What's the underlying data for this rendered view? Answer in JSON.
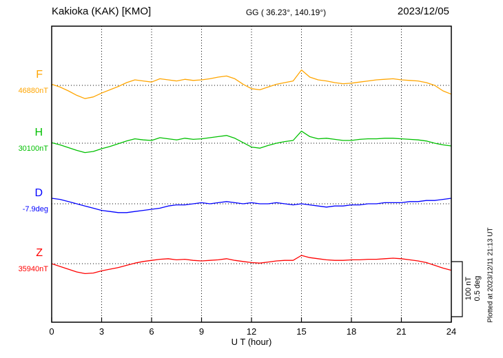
{
  "header": {
    "title": "Kakioka (KAK)  [KMO]",
    "coordinates": "GG ( 36.23°, 140.19°)",
    "date": "2023/12/05"
  },
  "axis": {
    "xlabel": "U T (hour)",
    "x_ticks": [
      0,
      3,
      6,
      9,
      12,
      15,
      18,
      21,
      24
    ]
  },
  "scale_bar": {
    "labels": [
      "100 nT",
      "0.5 deg"
    ]
  },
  "footer": {
    "plotted_at": "Plotted at 2023/12/11 21:13 UT"
  },
  "chart_data": {
    "type": "line",
    "title": "Kakioka (KAK) [KMO] magnetogram 2023/12/05",
    "xlabel": "U T (hour)",
    "xlim": [
      0,
      24
    ],
    "x_ticks": [
      0,
      3,
      6,
      9,
      12,
      15,
      18,
      21,
      24
    ],
    "grid": "dotted vertical lines every 3 h; dotted horizontal baseline per trace",
    "legend_position": "left margin (trace letter + baseline value)",
    "scale": {
      "bar_nT": 100,
      "bar_deg": 0.5
    },
    "x_hours": [
      0,
      0.5,
      1,
      1.5,
      2,
      2.5,
      3,
      3.5,
      4,
      4.5,
      5,
      5.5,
      6,
      6.5,
      7,
      7.5,
      8,
      8.5,
      9,
      9.5,
      10,
      10.5,
      11,
      11.5,
      12,
      12.5,
      13,
      13.5,
      14,
      14.5,
      15,
      15.5,
      16,
      16.5,
      17,
      17.5,
      18,
      18.5,
      19,
      19.5,
      20,
      20.5,
      21,
      21.5,
      22,
      22.5,
      23,
      23.5,
      24
    ],
    "series": [
      {
        "name": "F",
        "unit": "nT",
        "baseline_label": "46880nT",
        "baseline_value": 46880,
        "color": "#ffa500",
        "offsets": [
          2,
          -3,
          -10,
          -18,
          -24,
          -21,
          -14,
          -8,
          -2,
          5,
          10,
          8,
          6,
          12,
          10,
          8,
          11,
          9,
          10,
          12,
          15,
          17,
          12,
          2,
          -6,
          -8,
          -3,
          2,
          5,
          8,
          28,
          15,
          10,
          8,
          5,
          3,
          4,
          6,
          8,
          10,
          11,
          12,
          10,
          9,
          8,
          5,
          0,
          -10,
          -16
        ]
      },
      {
        "name": "H",
        "unit": "nT",
        "baseline_label": "30100nT",
        "baseline_value": 30100,
        "color": "#00c000",
        "offsets": [
          1,
          -3,
          -8,
          -13,
          -17,
          -15,
          -10,
          -6,
          -1,
          4,
          8,
          6,
          5,
          10,
          8,
          6,
          9,
          7,
          8,
          10,
          12,
          14,
          9,
          1,
          -7,
          -9,
          -4,
          0,
          3,
          5,
          22,
          12,
          8,
          9,
          7,
          5,
          5,
          7,
          8,
          8,
          9,
          9,
          8,
          7,
          6,
          4,
          0,
          -3,
          -5
        ]
      },
      {
        "name": "D",
        "unit": "deg",
        "baseline_label": "-7.9deg",
        "baseline_value": -7.9,
        "color": "#0000ff",
        "offsets": [
          0.05,
          0.04,
          0.02,
          0,
          -0.02,
          -0.04,
          -0.06,
          -0.07,
          -0.08,
          -0.08,
          -0.07,
          -0.06,
          -0.05,
          -0.04,
          -0.02,
          -0.01,
          -0.01,
          0,
          0.01,
          0,
          0.01,
          0.02,
          0.01,
          0,
          0.01,
          0,
          0,
          0.01,
          0,
          -0.01,
          0,
          -0.01,
          -0.02,
          -0.03,
          -0.02,
          -0.02,
          -0.01,
          -0.01,
          0,
          0,
          0.01,
          0.01,
          0.01,
          0.02,
          0.02,
          0.03,
          0.03,
          0.04,
          0.05
        ]
      },
      {
        "name": "Z",
        "unit": "nT",
        "baseline_label": "35940nT",
        "baseline_value": 35940,
        "color": "#ff0000",
        "offsets": [
          0,
          -5,
          -10,
          -15,
          -18,
          -17,
          -13,
          -10,
          -7,
          -3,
          1,
          4,
          6,
          8,
          9,
          7,
          8,
          6,
          5,
          6,
          7,
          9,
          6,
          4,
          2,
          1,
          3,
          5,
          6,
          6,
          15,
          11,
          9,
          7,
          6,
          6,
          7,
          7,
          8,
          8,
          9,
          10,
          9,
          7,
          5,
          2,
          -3,
          -8,
          -12
        ]
      }
    ]
  }
}
